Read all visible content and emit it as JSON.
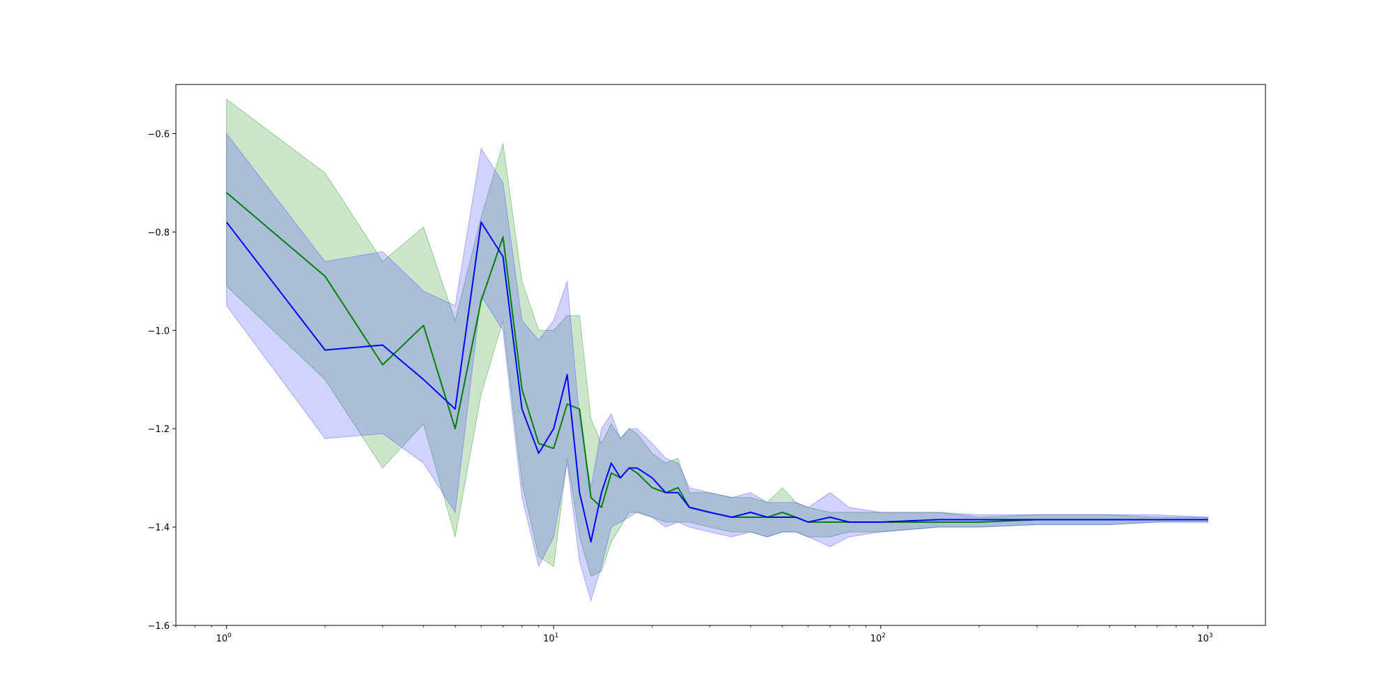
{
  "chart_data": {
    "type": "line",
    "title": "",
    "xlabel": "",
    "ylabel": "",
    "x_scale": "log",
    "xlim": [
      0.7,
      1500
    ],
    "ylim": [
      -1.6,
      -0.5
    ],
    "grid": false,
    "legend": "none",
    "x_ticks": [
      {
        "value": 1,
        "base": "10",
        "exp": "0"
      },
      {
        "value": 10,
        "base": "10",
        "exp": "1"
      },
      {
        "value": 100,
        "base": "10",
        "exp": "2"
      },
      {
        "value": 1000,
        "base": "10",
        "exp": "3"
      }
    ],
    "y_ticks": [
      {
        "value": -0.6,
        "label": "−0.6"
      },
      {
        "value": -0.8,
        "label": "−0.8"
      },
      {
        "value": -1.0,
        "label": "−1.0"
      },
      {
        "value": -1.2,
        "label": "−1.2"
      },
      {
        "value": -1.4,
        "label": "−1.4"
      },
      {
        "value": -1.6,
        "label": "−1.6"
      }
    ],
    "series": [
      {
        "color": "#008000",
        "band_color": "#008000",
        "x": [
          1,
          2,
          3,
          4,
          5,
          6,
          7,
          8,
          9,
          10,
          11,
          12,
          13,
          14,
          15,
          16,
          17,
          18,
          20,
          22,
          24,
          26,
          30,
          35,
          40,
          45,
          50,
          55,
          60,
          70,
          80,
          100,
          150,
          200,
          300,
          500,
          700,
          1000
        ],
        "y": [
          -0.72,
          -0.89,
          -1.07,
          -0.99,
          -1.2,
          -0.94,
          -0.81,
          -1.12,
          -1.23,
          -1.24,
          -1.15,
          -1.16,
          -1.34,
          -1.36,
          -1.29,
          -1.3,
          -1.28,
          -1.29,
          -1.32,
          -1.33,
          -1.32,
          -1.36,
          -1.37,
          -1.38,
          -1.38,
          -1.38,
          -1.37,
          -1.38,
          -1.39,
          -1.39,
          -1.39,
          -1.39,
          -1.39,
          -1.39,
          -1.385,
          -1.385,
          -1.385,
          -1.385
        ],
        "lower": [
          -0.91,
          -1.1,
          -1.28,
          -1.19,
          -1.42,
          -1.13,
          -0.98,
          -1.31,
          -1.46,
          -1.48,
          -1.26,
          -1.42,
          -1.5,
          -1.49,
          -1.43,
          -1.4,
          -1.37,
          -1.37,
          -1.38,
          -1.39,
          -1.39,
          -1.39,
          -1.4,
          -1.41,
          -1.41,
          -1.42,
          -1.41,
          -1.41,
          -1.42,
          -1.42,
          -1.41,
          -1.41,
          -1.4,
          -1.4,
          -1.395,
          -1.395,
          -1.39,
          -1.39
        ],
        "upper": [
          -0.53,
          -0.68,
          -0.86,
          -0.79,
          -0.98,
          -0.77,
          -0.62,
          -0.9,
          -1.0,
          -1.0,
          -0.97,
          -0.97,
          -1.18,
          -1.23,
          -1.19,
          -1.22,
          -1.2,
          -1.21,
          -1.25,
          -1.27,
          -1.26,
          -1.33,
          -1.33,
          -1.34,
          -1.34,
          -1.35,
          -1.32,
          -1.35,
          -1.36,
          -1.37,
          -1.37,
          -1.37,
          -1.37,
          -1.38,
          -1.375,
          -1.375,
          -1.38,
          -1.38
        ]
      },
      {
        "color": "#0000ff",
        "band_color": "#3333ff",
        "x": [
          1,
          2,
          3,
          4,
          5,
          6,
          7,
          8,
          9,
          10,
          11,
          12,
          13,
          14,
          15,
          16,
          17,
          18,
          20,
          22,
          24,
          26,
          30,
          35,
          40,
          45,
          50,
          55,
          60,
          70,
          80,
          100,
          150,
          200,
          300,
          500,
          700,
          1000
        ],
        "y": [
          -0.78,
          -1.04,
          -1.03,
          -1.1,
          -1.16,
          -0.78,
          -0.85,
          -1.16,
          -1.25,
          -1.2,
          -1.09,
          -1.33,
          -1.43,
          -1.33,
          -1.27,
          -1.3,
          -1.28,
          -1.28,
          -1.3,
          -1.33,
          -1.33,
          -1.36,
          -1.37,
          -1.38,
          -1.37,
          -1.38,
          -1.38,
          -1.38,
          -1.39,
          -1.38,
          -1.39,
          -1.39,
          -1.385,
          -1.385,
          -1.385,
          -1.385,
          -1.385,
          -1.385
        ],
        "lower": [
          -0.95,
          -1.22,
          -1.21,
          -1.27,
          -1.37,
          -0.93,
          -1.0,
          -1.34,
          -1.48,
          -1.42,
          -1.27,
          -1.47,
          -1.55,
          -1.48,
          -1.4,
          -1.39,
          -1.38,
          -1.37,
          -1.38,
          -1.4,
          -1.39,
          -1.4,
          -1.41,
          -1.42,
          -1.41,
          -1.42,
          -1.41,
          -1.41,
          -1.42,
          -1.44,
          -1.42,
          -1.41,
          -1.4,
          -1.4,
          -1.395,
          -1.395,
          -1.39,
          -1.39
        ],
        "upper": [
          -0.6,
          -0.86,
          -0.84,
          -0.92,
          -0.95,
          -0.63,
          -0.7,
          -0.98,
          -1.02,
          -0.98,
          -0.9,
          -1.18,
          -1.32,
          -1.2,
          -1.17,
          -1.22,
          -1.2,
          -1.2,
          -1.23,
          -1.26,
          -1.27,
          -1.32,
          -1.33,
          -1.34,
          -1.33,
          -1.35,
          -1.35,
          -1.35,
          -1.36,
          -1.33,
          -1.36,
          -1.37,
          -1.37,
          -1.375,
          -1.375,
          -1.375,
          -1.375,
          -1.38
        ]
      }
    ]
  }
}
